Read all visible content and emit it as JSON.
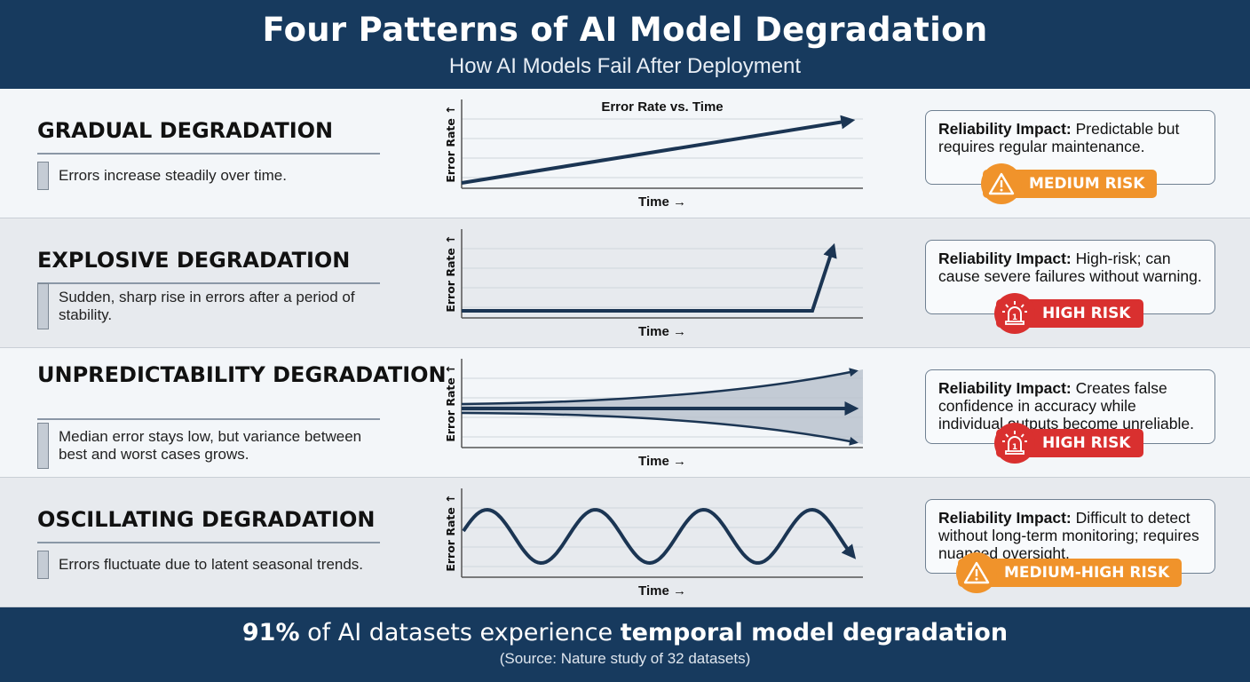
{
  "header": {
    "title": "Four Patterns of AI Model Degradation",
    "subtitle": "How AI Models Fail After Deployment"
  },
  "chart_labels": {
    "title": "Error Rate vs. Time",
    "y": "Error Rate ↑",
    "x": "Time →"
  },
  "colors": {
    "navy": "#173a5e",
    "line": "#1b3553",
    "medium": "#f0932b",
    "high": "#d9302f"
  },
  "patterns": [
    {
      "title": "GRADUAL DEGRADATION",
      "desc": "Errors increase steadily over time.",
      "impact_label": "Reliability Impact:",
      "impact": " Predictable but requires regular maintenance.",
      "risk": "MEDIUM RISK",
      "risk_level": "medium",
      "icon": "warning-triangle-icon",
      "shape": "linear"
    },
    {
      "title": "EXPLOSIVE DEGRADATION",
      "desc": "Sudden, sharp rise in errors after a period of stability.",
      "impact_label": "Reliability Impact:",
      "impact": " High-risk; can cause severe failures without warning.",
      "risk": "HIGH RISK",
      "risk_level": "high",
      "icon": "alarm-siren-icon",
      "shape": "explosive"
    },
    {
      "title": "UNPREDICTABILITY DEGRADATION",
      "desc": "Median error stays low, but variance between best and worst cases grows.",
      "impact_label": "Reliability Impact:",
      "impact": " Creates false confidence in accuracy while individual outputs become unreliable.",
      "risk": "HIGH RISK",
      "risk_level": "high",
      "icon": "alarm-siren-icon",
      "shape": "variance"
    },
    {
      "title": "OSCILLATING DEGRADATION",
      "desc": "Errors fluctuate due to latent seasonal trends.",
      "impact_label": "Reliability Impact:",
      "impact": " Difficult to detect without long-term monitoring; requires nuanced oversight.",
      "risk": "MEDIUM-HIGH RISK",
      "risk_level": "medium",
      "icon": "warning-triangle-icon",
      "shape": "oscillating"
    }
  ],
  "footer": {
    "stat": "91%",
    "middle": " of AI datasets experience ",
    "emphasis": "temporal model degradation",
    "source": "(Source: Nature study of 32 datasets)"
  }
}
